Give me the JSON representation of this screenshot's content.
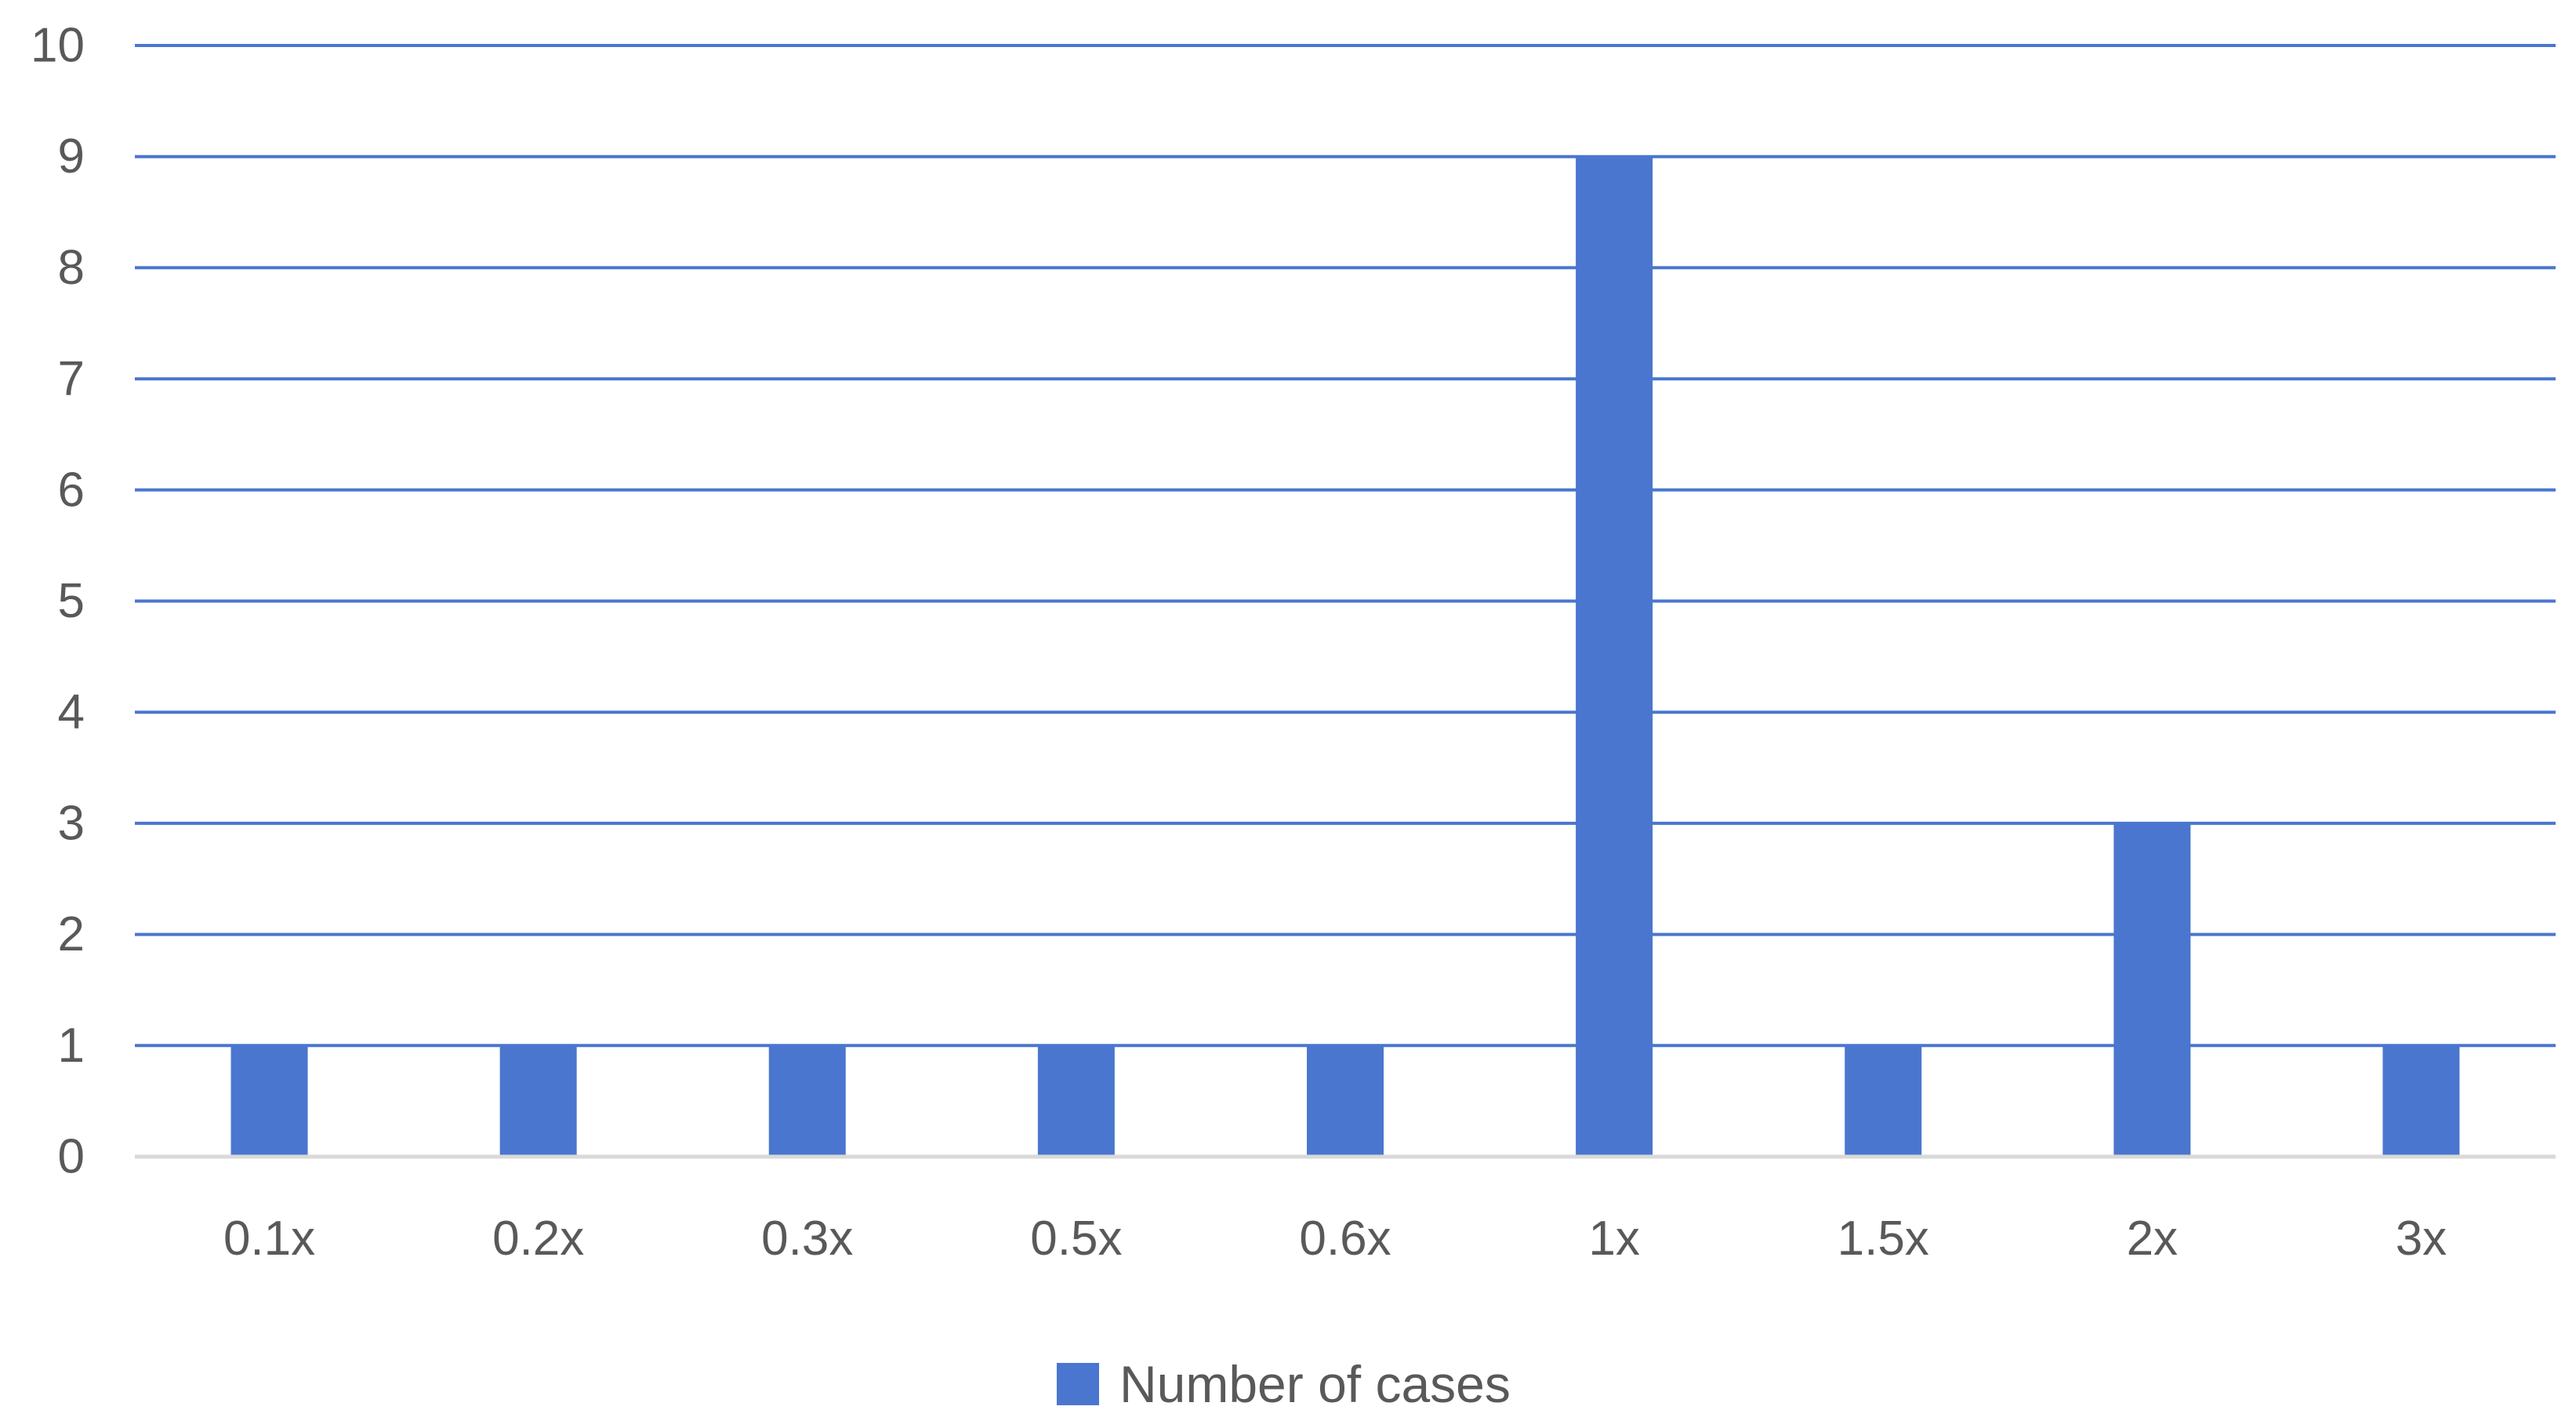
{
  "chart_data": {
    "type": "bar",
    "categories": [
      "0.1x",
      "0.2x",
      "0.3x",
      "0.5x",
      "0.6x",
      "1x",
      "1.5x",
      "2x",
      "3x"
    ],
    "series": [
      {
        "name": "Number of cases",
        "values": [
          1,
          1,
          1,
          1,
          1,
          9,
          1,
          3,
          1
        ],
        "color": "#4A76CF"
      }
    ],
    "ylim": [
      0,
      10
    ],
    "yticks": [
      0,
      1,
      2,
      3,
      4,
      5,
      6,
      7,
      8,
      9,
      10
    ],
    "grid": true,
    "grid_color": "#4A76CF",
    "axis_color": "#D9D9D9",
    "legend": {
      "position": "bottom",
      "label": "Number of cases"
    }
  }
}
